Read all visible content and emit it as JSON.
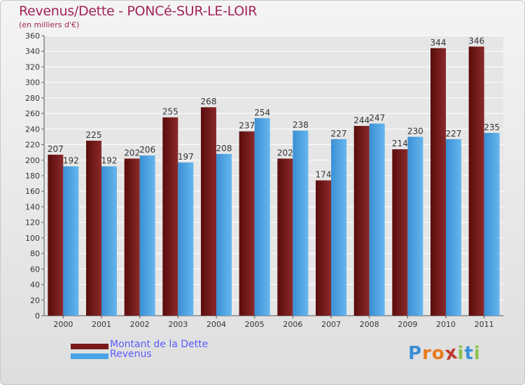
{
  "header": {
    "title": "Revenus/Dette - PONCé-SUR-LE-LOIR",
    "subtitle": "(en milliers d'€)"
  },
  "colors": {
    "title": "#a3245a",
    "dette": "#7a1a1a",
    "revenus": "#4aa3e6",
    "legend_text": "#5b5bff",
    "grid": "#ffffff"
  },
  "chart_data": {
    "type": "bar",
    "title": "Revenus/Dette - PONCé-SUR-LE-LOIR",
    "subtitle": "(en milliers d'€)",
    "categories": [
      "2000",
      "2001",
      "2002",
      "2003",
      "2004",
      "2005",
      "2006",
      "2007",
      "2008",
      "2009",
      "2010",
      "2011"
    ],
    "series": [
      {
        "name": "Montant de la Dette",
        "values": [
          207,
          225,
          202,
          255,
          268,
          237,
          202,
          174,
          244,
          214,
          344,
          346
        ],
        "color": "#7a1a1a"
      },
      {
        "name": "Revenus",
        "values": [
          192,
          192,
          206,
          197,
          208,
          254,
          238,
          227,
          247,
          230,
          227,
          235
        ],
        "color": "#4aa3e6"
      }
    ],
    "ylim": [
      0,
      360
    ],
    "ytick_step": 20,
    "grid": true,
    "legend_position": "bottom-left",
    "data_labels": true
  },
  "legend": {
    "items": [
      {
        "label": "Montant de la Dette",
        "color": "#7a1a1a"
      },
      {
        "label": "Revenus",
        "color": "#4aa3e6"
      }
    ]
  },
  "logo": {
    "letters": [
      "P",
      "r",
      "o",
      "x",
      "i",
      "t",
      "i"
    ],
    "colors": [
      "#3a8fd8",
      "#e87a1e",
      "#e87a1e",
      "#c0392b",
      "#8bc34a",
      "#3a8fd8",
      "#8bc34a"
    ]
  }
}
